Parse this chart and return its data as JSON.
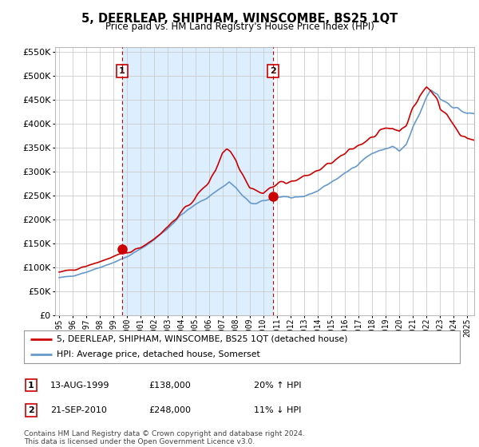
{
  "title": "5, DEERLEAP, SHIPHAM, WINSCOMBE, BS25 1QT",
  "subtitle": "Price paid vs. HM Land Registry's House Price Index (HPI)",
  "legend_line1": "5, DEERLEAP, SHIPHAM, WINSCOMBE, BS25 1QT (detached house)",
  "legend_line2": "HPI: Average price, detached house, Somerset",
  "footnote": "Contains HM Land Registry data © Crown copyright and database right 2024.\nThis data is licensed under the Open Government Licence v3.0.",
  "sale1_date": "13-AUG-1999",
  "sale1_price": "£138,000",
  "sale1_hpi": "20% ↑ HPI",
  "sale2_date": "21-SEP-2010",
  "sale2_price": "£248,000",
  "sale2_hpi": "11% ↓ HPI",
  "sale1_year": 1999.62,
  "sale2_year": 2010.72,
  "sale1_value": 138000,
  "sale2_value": 248000,
  "hpi_color": "#6699cc",
  "price_color": "#cc0000",
  "shade_color": "#ddeeff",
  "vline_color": "#cc0000",
  "grid_color": "#cccccc",
  "background_color": "#ffffff",
  "ylim_max": 560000,
  "ylim_min": 0,
  "xlim_min": 1994.7,
  "xlim_max": 2025.5,
  "xtick_years": [
    1995,
    1996,
    1997,
    1998,
    1999,
    2000,
    2001,
    2002,
    2003,
    2004,
    2005,
    2006,
    2007,
    2008,
    2009,
    2010,
    2011,
    2012,
    2013,
    2014,
    2015,
    2016,
    2017,
    2018,
    2019,
    2020,
    2021,
    2022,
    2023,
    2024,
    2025
  ]
}
